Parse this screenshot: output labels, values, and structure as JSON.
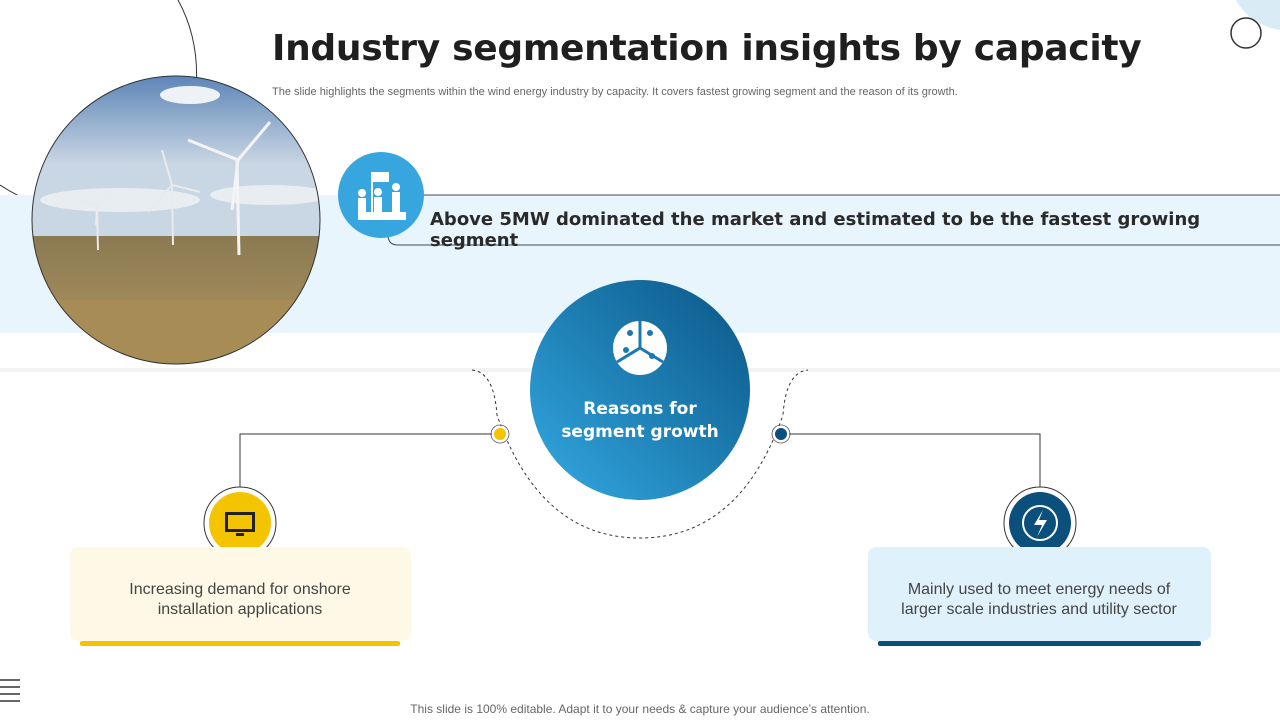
{
  "header": {
    "title": "Industry segmentation insights by capacity",
    "subtitle": "The slide highlights the segments within the wind energy industry by capacity. It covers fastest growing segment and the reason of its growth."
  },
  "headline": {
    "before": "Above ",
    "emphasis": "5MW",
    "after": " dominated the market and estimated to be the fastest growing segment"
  },
  "center": {
    "label": "Reasons for segment growth"
  },
  "reasons": [
    {
      "text": "Increasing demand for onshore installation applications"
    },
    {
      "text": "Mainly used to meet energy needs of larger scale industries and utility sector"
    }
  ],
  "footer": {
    "text": "This slide is 100% editable. Adapt it to your needs & capture your audience’s attention."
  }
}
